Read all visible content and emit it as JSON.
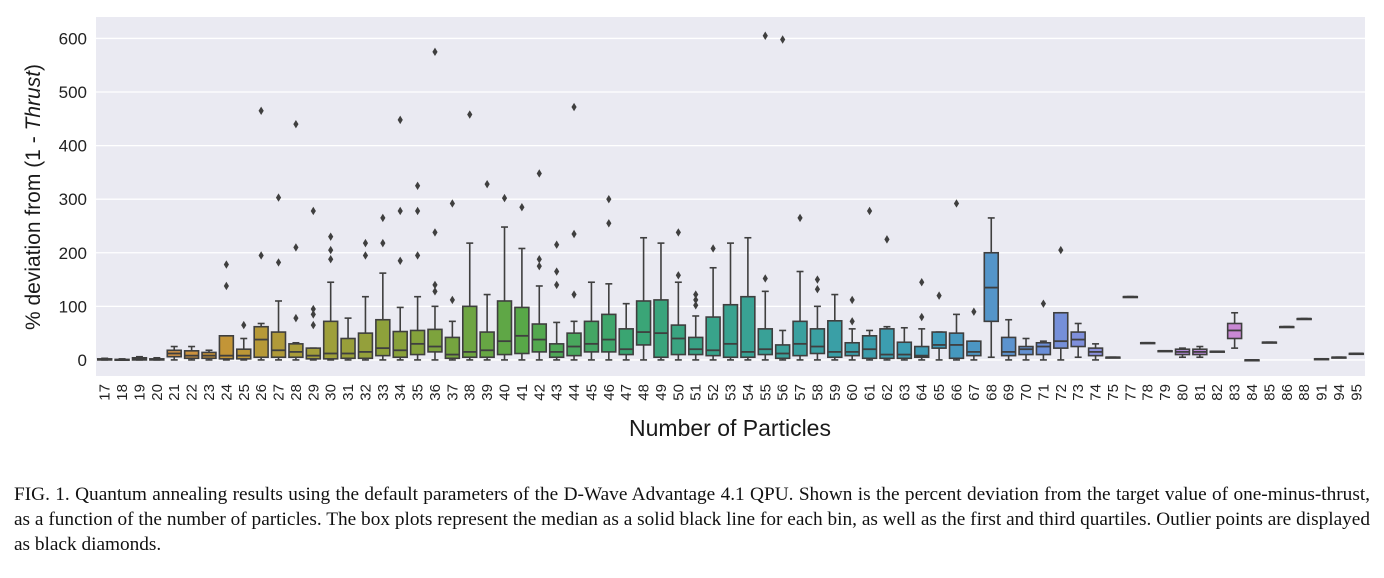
{
  "caption": {
    "label": "FIG. 1.",
    "text": "Quantum annealing results using the default parameters of the D-Wave Advantage 4.1 QPU. Shown is the percent deviation from the target value of one-minus-thrust, as a function of the number of particles. The box plots represent the median as a solid black line for each bin, as well as the first and third quartiles. Outlier points are displayed as black diamonds."
  },
  "chart_data": {
    "type": "box",
    "xlabel": "Number of Particles",
    "ylabel_prefix": "% deviation from (1 - ",
    "ylabel_italic": "Thrust",
    "ylabel_suffix": ")",
    "ylim": [
      -30,
      640
    ],
    "yticks": [
      0,
      100,
      200,
      300,
      400,
      500,
      600
    ],
    "grid": true,
    "colors": {
      "background": "#eaeaf2",
      "grid": "#ffffff",
      "edge": "#3f3f3f",
      "palette_start": "#e8927a",
      "palette": [
        "#d88a64",
        "#c99336",
        "#a39e3a",
        "#84a23b",
        "#58a848",
        "#3aa572",
        "#39a290",
        "#3a9fa6",
        "#3d9ab9",
        "#6b8fd8",
        "#a88fe0",
        "#cf86d2",
        "#e07fb6"
      ]
    },
    "categories": [
      "17",
      "18",
      "19",
      "20",
      "21",
      "22",
      "23",
      "24",
      "25",
      "26",
      "27",
      "28",
      "29",
      "30",
      "31",
      "32",
      "33",
      "34",
      "35",
      "36",
      "37",
      "38",
      "39",
      "40",
      "41",
      "42",
      "43",
      "44",
      "45",
      "46",
      "47",
      "48",
      "49",
      "50",
      "51",
      "52",
      "53",
      "54",
      "55",
      "56",
      "57",
      "58",
      "59",
      "60",
      "61",
      "62",
      "63",
      "64",
      "65",
      "66",
      "67",
      "68",
      "69",
      "70",
      "71",
      "72",
      "73",
      "74",
      "75",
      "77",
      "78",
      "79",
      "80",
      "81",
      "82",
      "83",
      "84",
      "85",
      "86",
      "88",
      "91",
      "94",
      "95"
    ],
    "boxes": [
      {
        "min": 0,
        "q1": 0,
        "median": 1,
        "q3": 2,
        "max": 3,
        "outliers": []
      },
      {
        "min": 0,
        "q1": 0,
        "median": 0,
        "q3": 1,
        "max": 2,
        "outliers": []
      },
      {
        "min": 0,
        "q1": 0,
        "median": 2,
        "q3": 4,
        "max": 6,
        "outliers": []
      },
      {
        "min": 0,
        "q1": 0,
        "median": 1,
        "q3": 2,
        "max": 4,
        "outliers": []
      },
      {
        "min": 0,
        "q1": 6,
        "median": 12,
        "q3": 18,
        "max": 25,
        "outliers": []
      },
      {
        "min": 0,
        "q1": 3,
        "median": 8,
        "q3": 17,
        "max": 25,
        "outliers": []
      },
      {
        "min": 0,
        "q1": 3,
        "median": 8,
        "q3": 14,
        "max": 18,
        "outliers": []
      },
      {
        "min": 0,
        "q1": 2,
        "median": 8,
        "q3": 45,
        "max": 45,
        "outliers": [
          138,
          178
        ]
      },
      {
        "min": 0,
        "q1": 2,
        "median": 8,
        "q3": 20,
        "max": 40,
        "outliers": [
          65
        ]
      },
      {
        "min": 0,
        "q1": 5,
        "median": 38,
        "q3": 62,
        "max": 68,
        "outliers": [
          195,
          465
        ]
      },
      {
        "min": 0,
        "q1": 5,
        "median": 18,
        "q3": 52,
        "max": 110,
        "outliers": [
          182,
          303
        ]
      },
      {
        "min": 0,
        "q1": 5,
        "median": 15,
        "q3": 30,
        "max": 32,
        "outliers": [
          78,
          210,
          440
        ]
      },
      {
        "min": 0,
        "q1": 2,
        "median": 8,
        "q3": 22,
        "max": 22,
        "outliers": [
          65,
          85,
          95,
          278
        ]
      },
      {
        "min": 0,
        "q1": 2,
        "median": 12,
        "q3": 72,
        "max": 145,
        "outliers": [
          188,
          205,
          230
        ]
      },
      {
        "min": 0,
        "q1": 3,
        "median": 12,
        "q3": 40,
        "max": 78,
        "outliers": []
      },
      {
        "min": 0,
        "q1": 3,
        "median": 15,
        "q3": 50,
        "max": 118,
        "outliers": [
          195,
          218
        ]
      },
      {
        "min": 0,
        "q1": 8,
        "median": 22,
        "q3": 75,
        "max": 162,
        "outliers": [
          218,
          265
        ]
      },
      {
        "min": 0,
        "q1": 5,
        "median": 18,
        "q3": 53,
        "max": 98,
        "outliers": [
          185,
          278,
          448
        ]
      },
      {
        "min": 0,
        "q1": 10,
        "median": 30,
        "q3": 55,
        "max": 118,
        "outliers": [
          195,
          278,
          325
        ]
      },
      {
        "min": 0,
        "q1": 15,
        "median": 25,
        "q3": 57,
        "max": 100,
        "outliers": [
          128,
          140,
          238,
          575
        ]
      },
      {
        "min": 0,
        "q1": 3,
        "median": 10,
        "q3": 42,
        "max": 72,
        "outliers": [
          112,
          292
        ]
      },
      {
        "min": 0,
        "q1": 5,
        "median": 15,
        "q3": 100,
        "max": 218,
        "outliers": [
          458
        ]
      },
      {
        "min": 0,
        "q1": 5,
        "median": 18,
        "q3": 52,
        "max": 122,
        "outliers": [
          328
        ]
      },
      {
        "min": 0,
        "q1": 10,
        "median": 35,
        "q3": 110,
        "max": 248,
        "outliers": [
          302
        ]
      },
      {
        "min": 0,
        "q1": 12,
        "median": 45,
        "q3": 98,
        "max": 208,
        "outliers": [
          285
        ]
      },
      {
        "min": 0,
        "q1": 15,
        "median": 38,
        "q3": 67,
        "max": 138,
        "outliers": [
          175,
          188,
          348
        ]
      },
      {
        "min": 0,
        "q1": 5,
        "median": 15,
        "q3": 30,
        "max": 70,
        "outliers": [
          140,
          165,
          215
        ]
      },
      {
        "min": 0,
        "q1": 8,
        "median": 25,
        "q3": 50,
        "max": 72,
        "outliers": [
          122,
          235,
          472
        ]
      },
      {
        "min": 0,
        "q1": 15,
        "median": 30,
        "q3": 72,
        "max": 145,
        "outliers": []
      },
      {
        "min": 0,
        "q1": 15,
        "median": 38,
        "q3": 85,
        "max": 142,
        "outliers": [
          255,
          300
        ]
      },
      {
        "min": 0,
        "q1": 10,
        "median": 20,
        "q3": 58,
        "max": 105,
        "outliers": []
      },
      {
        "min": 0,
        "q1": 28,
        "median": 52,
        "q3": 110,
        "max": 228,
        "outliers": []
      },
      {
        "min": 0,
        "q1": 5,
        "median": 50,
        "q3": 112,
        "max": 218,
        "outliers": []
      },
      {
        "min": 0,
        "q1": 10,
        "median": 40,
        "q3": 65,
        "max": 145,
        "outliers": [
          158,
          238
        ]
      },
      {
        "min": 0,
        "q1": 10,
        "median": 20,
        "q3": 42,
        "max": 82,
        "outliers": [
          102,
          112,
          122
        ]
      },
      {
        "min": 0,
        "q1": 8,
        "median": 18,
        "q3": 80,
        "max": 172,
        "outliers": [
          208
        ]
      },
      {
        "min": 0,
        "q1": 5,
        "median": 30,
        "q3": 103,
        "max": 218,
        "outliers": []
      },
      {
        "min": 0,
        "q1": 5,
        "median": 15,
        "q3": 118,
        "max": 228,
        "outliers": []
      },
      {
        "min": 0,
        "q1": 10,
        "median": 20,
        "q3": 58,
        "max": 128,
        "outliers": [
          152,
          605
        ]
      },
      {
        "min": 0,
        "q1": 3,
        "median": 12,
        "q3": 28,
        "max": 55,
        "outliers": [
          598
        ]
      },
      {
        "min": 0,
        "q1": 8,
        "median": 30,
        "q3": 72,
        "max": 165,
        "outliers": [
          265
        ]
      },
      {
        "min": 0,
        "q1": 12,
        "median": 25,
        "q3": 58,
        "max": 100,
        "outliers": [
          132,
          150
        ]
      },
      {
        "min": 0,
        "q1": 5,
        "median": 15,
        "q3": 73,
        "max": 122,
        "outliers": []
      },
      {
        "min": 0,
        "q1": 8,
        "median": 15,
        "q3": 32,
        "max": 58,
        "outliers": [
          72,
          112
        ]
      },
      {
        "min": 0,
        "q1": 3,
        "median": 20,
        "q3": 45,
        "max": 55,
        "outliers": [
          278
        ]
      },
      {
        "min": 0,
        "q1": 3,
        "median": 10,
        "q3": 58,
        "max": 62,
        "outliers": [
          225
        ]
      },
      {
        "min": 0,
        "q1": 3,
        "median": 10,
        "q3": 33,
        "max": 60,
        "outliers": []
      },
      {
        "min": 0,
        "q1": 5,
        "median": 8,
        "q3": 25,
        "max": 58,
        "outliers": [
          80,
          145
        ]
      },
      {
        "min": 0,
        "q1": 22,
        "median": 28,
        "q3": 52,
        "max": 52,
        "outliers": [
          120
        ]
      },
      {
        "min": 0,
        "q1": 3,
        "median": 28,
        "q3": 50,
        "max": 85,
        "outliers": [
          292
        ]
      },
      {
        "min": 0,
        "q1": 8,
        "median": 15,
        "q3": 35,
        "max": 35,
        "outliers": [
          90
        ]
      },
      {
        "min": 5,
        "q1": 72,
        "median": 135,
        "q3": 200,
        "max": 265,
        "outliers": []
      },
      {
        "min": 0,
        "q1": 8,
        "median": 15,
        "q3": 42,
        "max": 75,
        "outliers": []
      },
      {
        "min": 0,
        "q1": 10,
        "median": 20,
        "q3": 25,
        "max": 40,
        "outliers": []
      },
      {
        "min": 0,
        "q1": 10,
        "median": 25,
        "q3": 32,
        "max": 35,
        "outliers": [
          105
        ]
      },
      {
        "min": 0,
        "q1": 22,
        "median": 35,
        "q3": 88,
        "max": 88,
        "outliers": [
          205
        ]
      },
      {
        "min": 5,
        "q1": 25,
        "median": 38,
        "q3": 52,
        "max": 68,
        "outliers": []
      },
      {
        "min": 0,
        "q1": 8,
        "median": 15,
        "q3": 22,
        "max": 30,
        "outliers": []
      },
      {
        "min": 5,
        "q1": 5,
        "median": 5,
        "q3": 5,
        "max": 5,
        "outliers": []
      },
      {
        "min": 118,
        "q1": 118,
        "median": 118,
        "q3": 118,
        "max": 118,
        "outliers": []
      },
      {
        "min": 32,
        "q1": 32,
        "median": 32,
        "q3": 32,
        "max": 32,
        "outliers": []
      },
      {
        "min": 17,
        "q1": 17,
        "median": 17,
        "q3": 17,
        "max": 17,
        "outliers": []
      },
      {
        "min": 5,
        "q1": 10,
        "median": 15,
        "q3": 20,
        "max": 22,
        "outliers": []
      },
      {
        "min": 5,
        "q1": 10,
        "median": 15,
        "q3": 20,
        "max": 25,
        "outliers": []
      },
      {
        "min": 16,
        "q1": 16,
        "median": 16,
        "q3": 16,
        "max": 16,
        "outliers": []
      },
      {
        "min": 22,
        "q1": 40,
        "median": 55,
        "q3": 68,
        "max": 88,
        "outliers": []
      },
      {
        "min": 0,
        "q1": 0,
        "median": 0,
        "q3": 0,
        "max": 0,
        "outliers": []
      },
      {
        "min": 33,
        "q1": 33,
        "median": 33,
        "q3": 33,
        "max": 33,
        "outliers": []
      },
      {
        "min": 62,
        "q1": 62,
        "median": 62,
        "q3": 62,
        "max": 62,
        "outliers": []
      },
      {
        "min": 77,
        "q1": 77,
        "median": 77,
        "q3": 77,
        "max": 77,
        "outliers": []
      },
      {
        "min": 2,
        "q1": 2,
        "median": 2,
        "q3": 2,
        "max": 2,
        "outliers": []
      },
      {
        "min": 5,
        "q1": 5,
        "median": 5,
        "q3": 5,
        "max": 5,
        "outliers": []
      },
      {
        "min": 12,
        "q1": 12,
        "median": 12,
        "q3": 12,
        "max": 12,
        "outliers": []
      }
    ]
  }
}
